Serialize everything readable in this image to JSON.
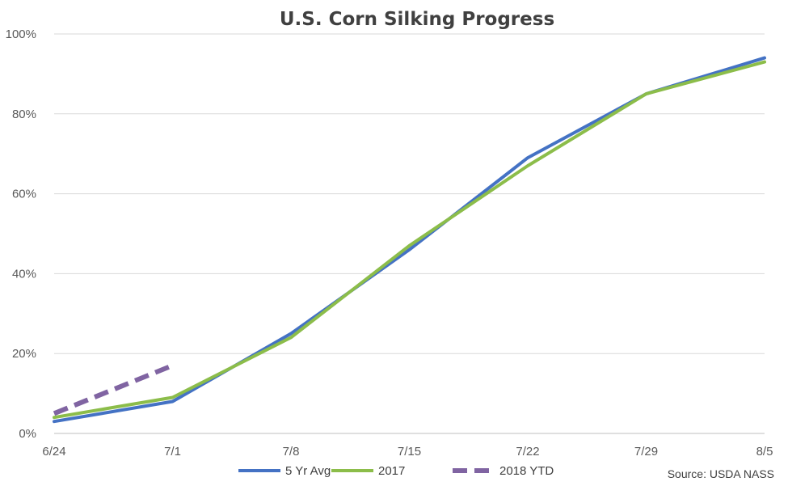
{
  "chart_data": {
    "type": "line",
    "title": "U.S. Corn Silking Progress",
    "categories": [
      "6/24",
      "7/1",
      "7/8",
      "7/15",
      "7/22",
      "7/29",
      "8/5"
    ],
    "ylim": [
      0,
      100
    ],
    "yticks": [
      "0%",
      "20%",
      "40%",
      "60%",
      "80%",
      "100%"
    ],
    "ytick_values": [
      0,
      20,
      40,
      60,
      80,
      100
    ],
    "grid": true,
    "legend_position": "bottom",
    "series": [
      {
        "name": "5 Yr Avg",
        "values": [
          3,
          8,
          25,
          46,
          69,
          85,
          94
        ],
        "color": "#4472c4",
        "dashed": false
      },
      {
        "name": "2017",
        "values": [
          4,
          9,
          24,
          47,
          67,
          85,
          93
        ],
        "color": "#8cbd4a",
        "dashed": false
      },
      {
        "name": "2018 YTD",
        "values": [
          5,
          17,
          null,
          null,
          null,
          null,
          null
        ],
        "color": "#8064a2",
        "dashed": true
      }
    ],
    "source": "Source: USDA NASS"
  }
}
